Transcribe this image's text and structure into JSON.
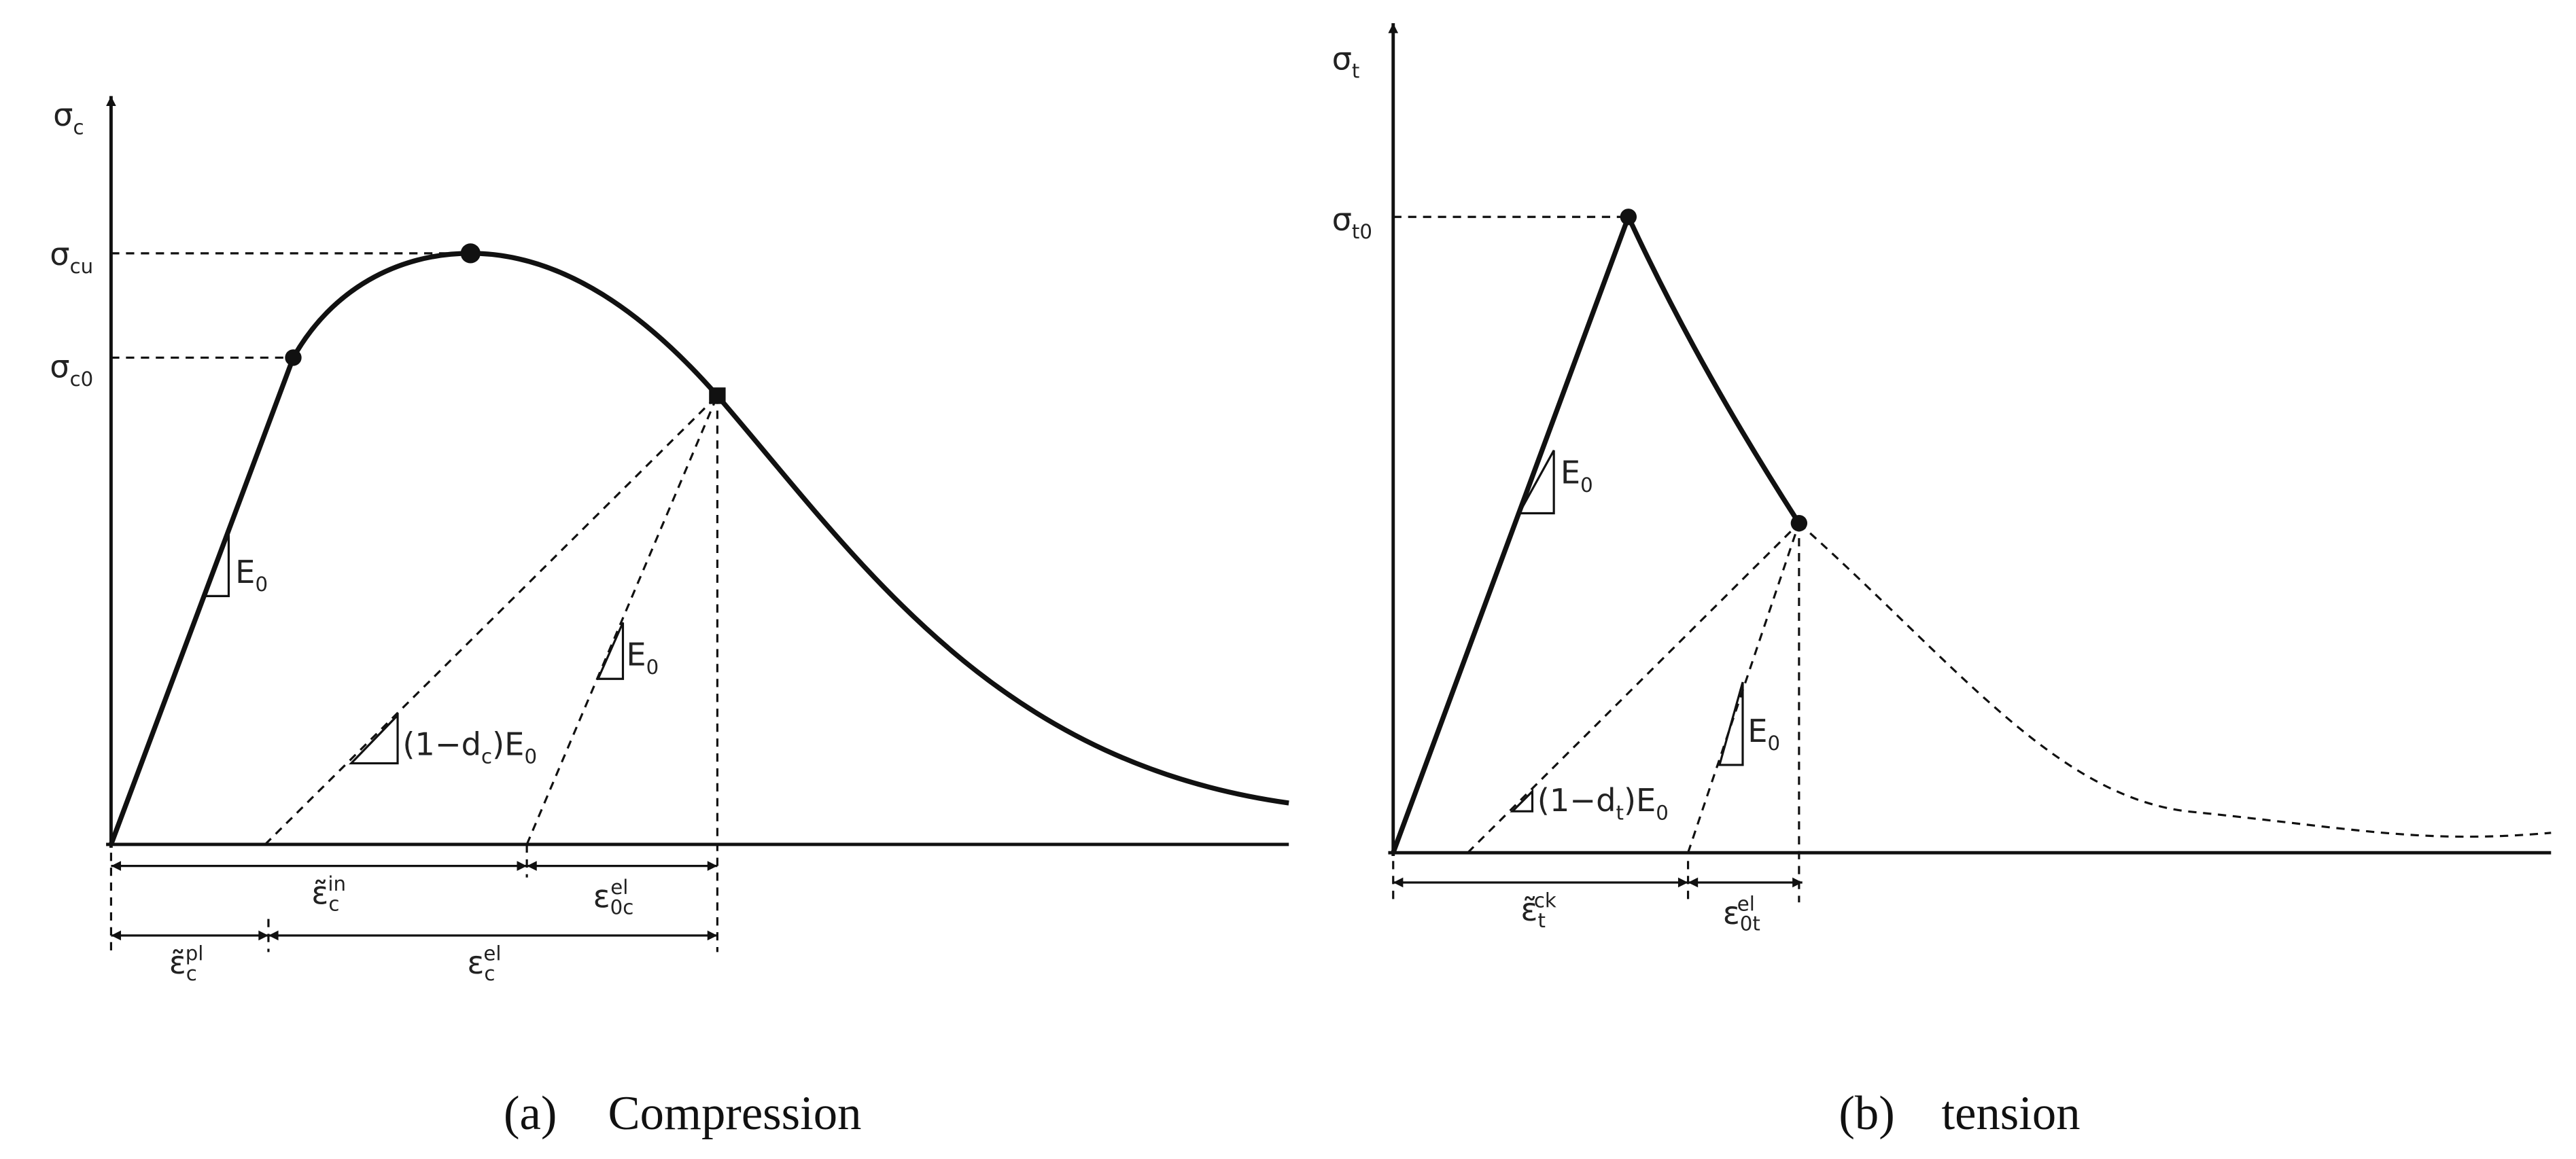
{
  "compression": {
    "sigma_c": {
      "base": "σ",
      "sub": "c"
    },
    "sigma_cu": {
      "base": "σ",
      "sub": "cu"
    },
    "sigma_c0": {
      "base": "σ",
      "sub": "c0"
    },
    "slope_e0_a": {
      "base": "E",
      "sub": "0"
    },
    "slope_e0_b": {
      "base": "E",
      "sub": "0"
    },
    "slope_damaged": {
      "parts": [
        "(1−d",
        "c",
        ")E",
        "0"
      ]
    },
    "eps_in": {
      "base": "ε̃",
      "sub": "c",
      "sup": "in"
    },
    "eps_0c_el": {
      "base": "ε",
      "sub": "0c",
      "sup": "el"
    },
    "eps_pl": {
      "base": "ε̃",
      "sub": "c",
      "sup": "pl"
    },
    "eps_c_el": {
      "base": "ε",
      "sub": "c",
      "sup": "el"
    },
    "caption": {
      "tag": "(a)",
      "text": "Compression"
    }
  },
  "tension": {
    "sigma_t": {
      "base": "σ",
      "sub": "t"
    },
    "sigma_t0": {
      "base": "σ",
      "sub": "t0"
    },
    "slope_e0_a": {
      "base": "E",
      "sub": "0"
    },
    "slope_e0_b": {
      "base": "E",
      "sub": "0"
    },
    "slope_damaged": {
      "parts": [
        "(1−d",
        "t",
        ")E",
        "0"
      ]
    },
    "eps_ck": {
      "base": "ε̃",
      "sub": "t",
      "sup": "ck"
    },
    "eps_0t_el": {
      "base": "ε",
      "sub": "0t",
      "sup": "el"
    },
    "caption": {
      "tag": "(b)",
      "text": "tension"
    }
  }
}
